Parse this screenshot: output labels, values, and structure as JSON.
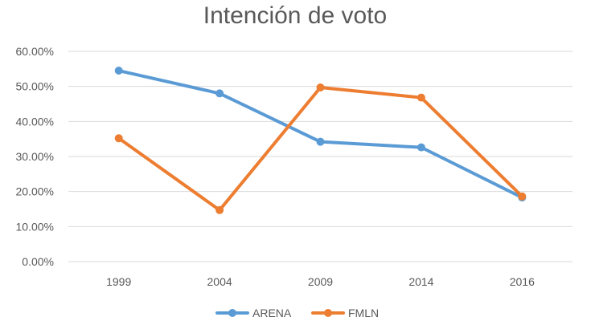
{
  "chart_data": {
    "type": "line",
    "title": "Intención de voto",
    "categories": [
      "1999",
      "2004",
      "2009",
      "2014",
      "2016"
    ],
    "ylim": [
      0,
      0.6
    ],
    "yticks": [
      0,
      0.1,
      0.2,
      0.3,
      0.4,
      0.5,
      0.6
    ],
    "ytick_labels": [
      "0.00%",
      "10.00%",
      "20.00%",
      "30.00%",
      "40.00%",
      "50.00%",
      "60.00%"
    ],
    "grid": true,
    "legend_position": "bottom",
    "series": [
      {
        "name": "ARENA",
        "color": "#5b9bd5",
        "values": [
          0.545,
          0.48,
          0.342,
          0.326,
          0.183
        ]
      },
      {
        "name": "FMLN",
        "color": "#ed7d31",
        "values": [
          0.352,
          0.147,
          0.497,
          0.468,
          0.186
        ]
      }
    ]
  }
}
